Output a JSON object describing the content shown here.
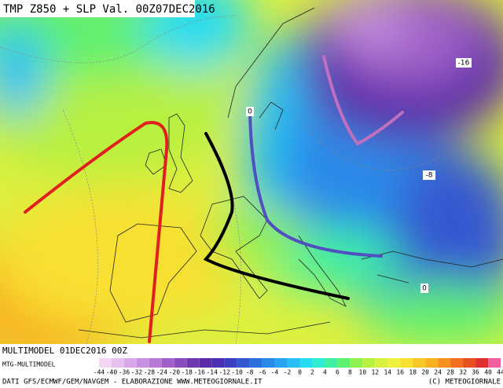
{
  "header": {
    "title": "TMP Z850 + SLP Val. 00Z07DEC2016"
  },
  "map": {
    "contour_labels": [
      "-16",
      "-8",
      "0",
      "0"
    ]
  },
  "footer": {
    "run": "MULTIMODEL 01DEC2016 00Z",
    "source_tag": "MTG-MULTIMODEL",
    "credits": "DATI GFS/ECMWF/GEM/NAVGEM - ELABORAZIONE WWW.METEOGIORNALE.IT",
    "copyright": "(C) METEOGIORNALE"
  },
  "legend": {
    "labels": [
      -44,
      -40,
      -36,
      -32,
      -28,
      -24,
      -20,
      -18,
      -16,
      -14,
      -12,
      -10,
      -8,
      -6,
      -4,
      -2,
      0,
      2,
      4,
      6,
      8,
      10,
      12,
      14,
      16,
      18,
      20,
      24,
      28,
      32,
      36,
      40,
      44
    ],
    "colors": [
      "#f2d6f2",
      "#e6c0ee",
      "#d8a8e8",
      "#c890e0",
      "#b878d6",
      "#a060c8",
      "#8a4cbc",
      "#7038b0",
      "#5a2ca8",
      "#4a30b0",
      "#3c40c0",
      "#3458d0",
      "#2c70e0",
      "#2a8ae8",
      "#28a4f0",
      "#28c0f4",
      "#28dcf0",
      "#30ecd0",
      "#40f0a0",
      "#60f070",
      "#90f050",
      "#b8f040",
      "#d8f040",
      "#f0f040",
      "#f8e030",
      "#f8c828",
      "#f8b020",
      "#f89020",
      "#f07020",
      "#e85020",
      "#e03030",
      "#f060a0"
    ]
  }
}
